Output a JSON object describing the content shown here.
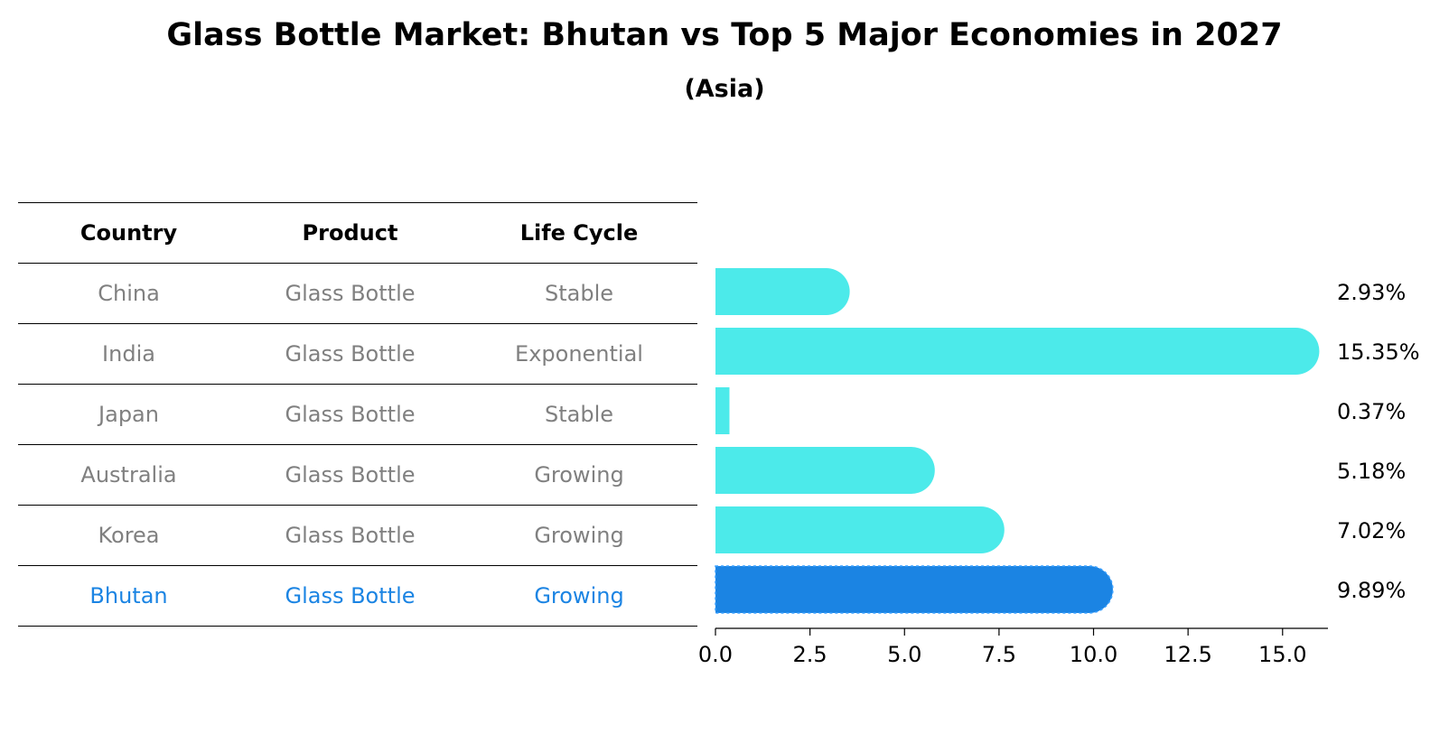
{
  "title": "Glass Bottle Market: Bhutan vs Top 5 Major Economies in 2027",
  "subtitle": "(Asia)",
  "table": {
    "headers": [
      "Country",
      "Product",
      "Life Cycle"
    ],
    "rows": [
      {
        "country": "China",
        "product": "Glass Bottle",
        "life_cycle": "Stable"
      },
      {
        "country": "India",
        "product": "Glass Bottle",
        "life_cycle": "Exponential"
      },
      {
        "country": "Japan",
        "product": "Glass Bottle",
        "life_cycle": "Stable"
      },
      {
        "country": "Australia",
        "product": "Glass Bottle",
        "life_cycle": "Growing"
      },
      {
        "country": "Korea",
        "product": "Glass Bottle",
        "life_cycle": "Growing"
      },
      {
        "country": "Bhutan",
        "product": "Glass Bottle",
        "life_cycle": "Growing"
      }
    ]
  },
  "colors": {
    "bar": "#4ceaea",
    "highlight": "#1b84e3",
    "muted_text": "#808080",
    "rule": "#000000"
  },
  "chart_data": {
    "type": "bar",
    "orientation": "horizontal",
    "categories": [
      "China",
      "India",
      "Japan",
      "Australia",
      "Korea",
      "Bhutan"
    ],
    "values": [
      2.93,
      15.35,
      0.37,
      5.18,
      7.02,
      9.89
    ],
    "value_labels": [
      "2.93%",
      "15.35%",
      "0.37%",
      "5.18%",
      "7.02%",
      "9.89%"
    ],
    "highlight_category": "Bhutan",
    "xlim": [
      0,
      16.2
    ],
    "xticks": [
      0.0,
      2.5,
      5.0,
      7.5,
      10.0,
      12.5,
      15.0
    ],
    "xtick_labels": [
      "0.0",
      "2.5",
      "5.0",
      "7.5",
      "10.0",
      "12.5",
      "15.0"
    ],
    "xlabel": "",
    "ylabel": "",
    "grid": false
  }
}
